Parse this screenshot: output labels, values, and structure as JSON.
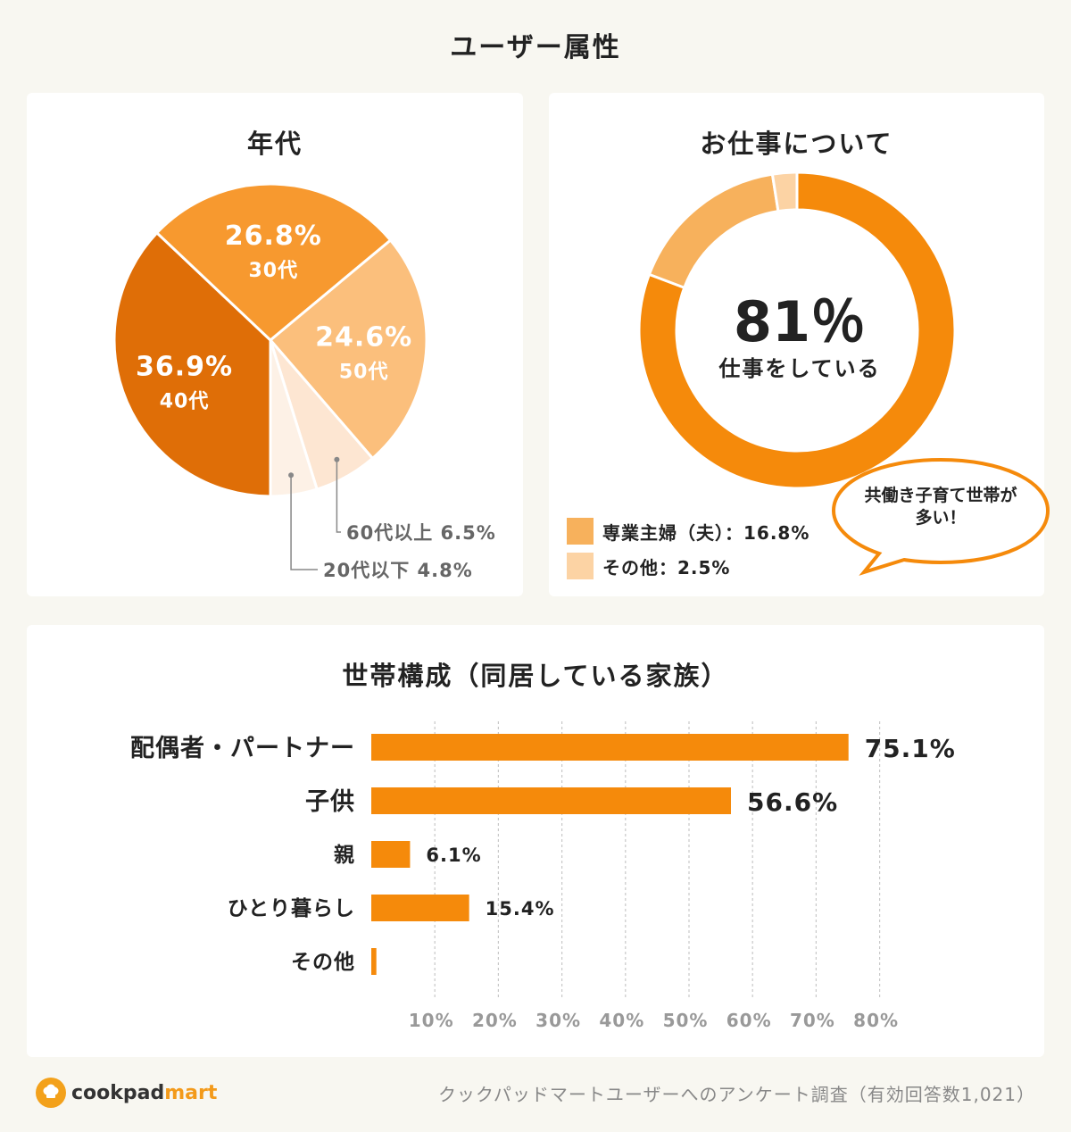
{
  "page_title": "ユーザー属性",
  "age_card": {
    "title": "年代"
  },
  "work_card": {
    "title": "お仕事について",
    "center_value": "81％",
    "center_label": "仕事をしている",
    "bubble_line1": "共働き子育て世帯が",
    "bubble_line2": "多い！",
    "legend": [
      {
        "label": "専業主婦（夫）：16.8%",
        "color": "#f7b15c"
      },
      {
        "label": "その他：2.5%",
        "color": "#fcd3a4"
      }
    ]
  },
  "household_card": {
    "title": "世帯構成（同居している家族）"
  },
  "footer": {
    "logo_main": "cookpad",
    "logo_accent": "mart",
    "note": "クックパッドマートユーザーへのアンケート調査（有効回答数1,021）"
  },
  "chart_data": [
    {
      "type": "pie",
      "title": "年代",
      "categories": [
        "40代",
        "30代",
        "50代",
        "60代以上",
        "20代以下"
      ],
      "values": [
        36.9,
        26.8,
        24.6,
        6.5,
        4.8
      ],
      "labels": [
        "36.9%",
        "26.8%",
        "24.6%",
        "60代以上 6.5%",
        "20代以下 4.8%"
      ],
      "colors": [
        "#df6e07",
        "#f7992f",
        "#fbbf7c",
        "#fde6d2",
        "#fdf1e6"
      ]
    },
    {
      "type": "pie",
      "title": "お仕事について",
      "categories": [
        "仕事をしている",
        "専業主婦（夫）",
        "その他"
      ],
      "values": [
        81,
        16.8,
        2.5
      ],
      "colors": [
        "#f58a0b",
        "#f7b15c",
        "#fcd3a4"
      ],
      "donut": true
    },
    {
      "type": "bar",
      "orientation": "horizontal",
      "title": "世帯構成（同居している家族）",
      "categories": [
        "配偶者・パートナー",
        "子供",
        "親",
        "ひとり暮らし",
        "その他"
      ],
      "values": [
        75.1,
        56.6,
        6.1,
        15.4,
        0.8
      ],
      "value_labels": [
        "75.1%",
        "56.6%",
        "6.1%",
        "15.4%",
        ""
      ],
      "emphasis": [
        true,
        true,
        false,
        false,
        false
      ],
      "xlim": [
        0,
        80
      ],
      "xticks": [
        "10%",
        "20%",
        "30%",
        "40%",
        "50%",
        "60%",
        "70%",
        "80%"
      ],
      "grid": true,
      "color": "#f58a0b"
    }
  ]
}
